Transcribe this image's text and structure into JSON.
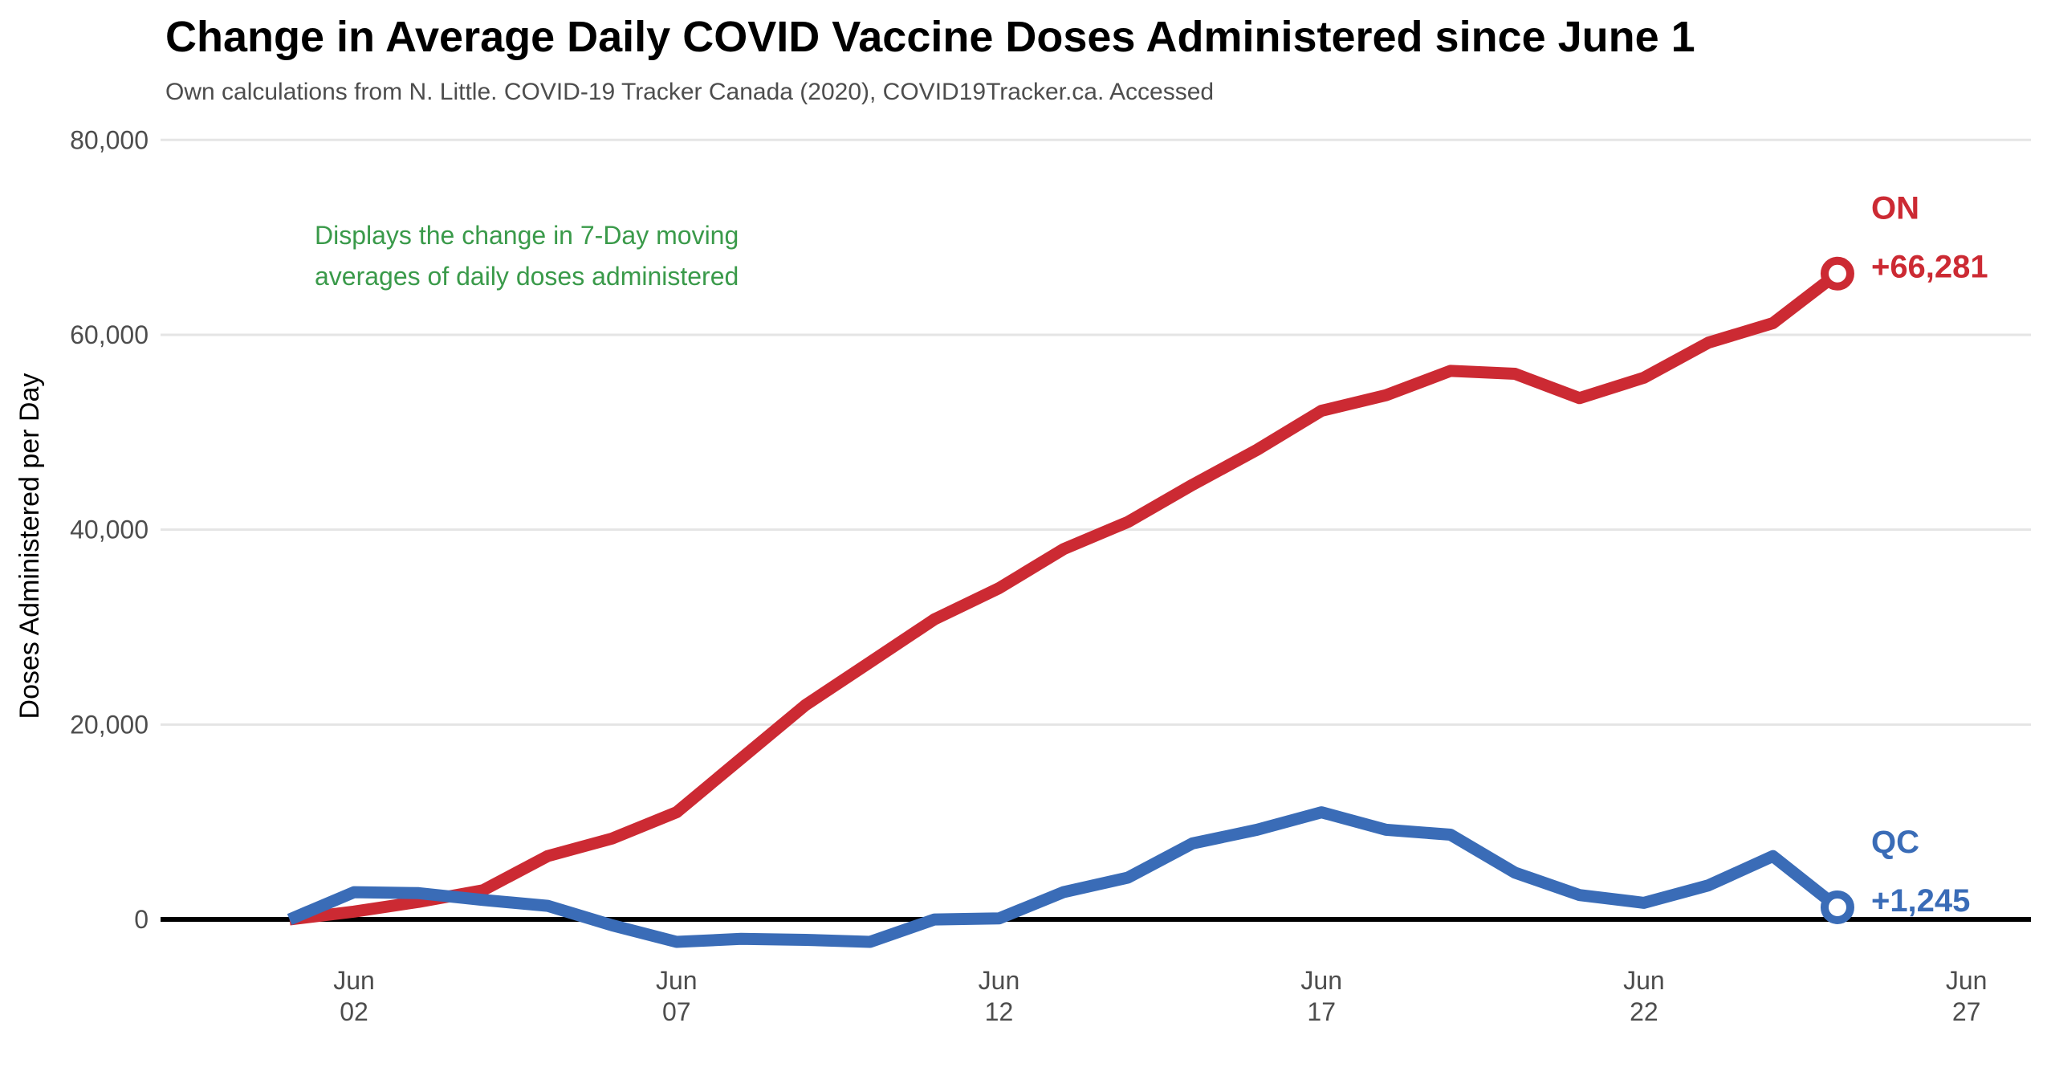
{
  "chart_data": {
    "type": "line",
    "title": "Change in Average Daily COVID Vaccine Doses Administered since June 1",
    "subtitle": "Own calculations from N. Little. COVID-19 Tracker Canada (2020), COVID19Tracker.ca. Accessed",
    "ylabel": "Doses Administered per Day",
    "xlabel": "",
    "ylim": [
      -7000,
      82000
    ],
    "xlim": [
      "2021-05-30",
      "2021-06-28"
    ],
    "yticks": [
      0,
      20000,
      40000,
      60000,
      80000
    ],
    "ytick_labels": [
      "0",
      "20,000",
      "40,000",
      "60,000",
      "80,000"
    ],
    "xticks": [
      "2021-06-02",
      "2021-06-07",
      "2021-06-12",
      "2021-06-17",
      "2021-06-22",
      "2021-06-27"
    ],
    "xtick_labels": [
      [
        "Jun",
        "02"
      ],
      [
        "Jun",
        "07"
      ],
      [
        "Jun",
        "12"
      ],
      [
        "Jun",
        "17"
      ],
      [
        "Jun",
        "22"
      ],
      [
        "Jun",
        "27"
      ]
    ],
    "grid": "horizontal",
    "legend": "none",
    "annotation": [
      "Displays the change in 7-Day moving",
      "averages of daily doses administered"
    ],
    "annotation_color": "#3a9a4a",
    "series": [
      {
        "name": "ON",
        "end_label": "+66,281",
        "color": "#cc2a33",
        "x": [
          "2021-06-01",
          "2021-06-02",
          "2021-06-03",
          "2021-06-04",
          "2021-06-05",
          "2021-06-06",
          "2021-06-07",
          "2021-06-08",
          "2021-06-09",
          "2021-06-10",
          "2021-06-11",
          "2021-06-12",
          "2021-06-13",
          "2021-06-14",
          "2021-06-15",
          "2021-06-16",
          "2021-06-17",
          "2021-06-18",
          "2021-06-19",
          "2021-06-20",
          "2021-06-21",
          "2021-06-22",
          "2021-06-23",
          "2021-06-24",
          "2021-06-25"
        ],
        "values": [
          0,
          800,
          1800,
          3000,
          6500,
          8300,
          11000,
          16500,
          22000,
          26400,
          30800,
          34000,
          38000,
          40800,
          44600,
          48200,
          52200,
          53800,
          56300,
          56000,
          53500,
          55600,
          59200,
          61200,
          66281
        ]
      },
      {
        "name": "QC",
        "end_label": "+1,245",
        "color": "#3a6cb7",
        "x": [
          "2021-06-01",
          "2021-06-02",
          "2021-06-03",
          "2021-06-04",
          "2021-06-05",
          "2021-06-06",
          "2021-06-07",
          "2021-06-08",
          "2021-06-09",
          "2021-06-10",
          "2021-06-11",
          "2021-06-12",
          "2021-06-13",
          "2021-06-14",
          "2021-06-15",
          "2021-06-16",
          "2021-06-17",
          "2021-06-18",
          "2021-06-19",
          "2021-06-20",
          "2021-06-21",
          "2021-06-22",
          "2021-06-23",
          "2021-06-24",
          "2021-06-25"
        ],
        "values": [
          0,
          2800,
          2700,
          2000,
          1400,
          -600,
          -2300,
          -2000,
          -2100,
          -2300,
          0,
          100,
          2800,
          4300,
          7800,
          9200,
          11000,
          9200,
          8700,
          4800,
          2500,
          1700,
          3500,
          6500,
          1245
        ]
      }
    ]
  }
}
